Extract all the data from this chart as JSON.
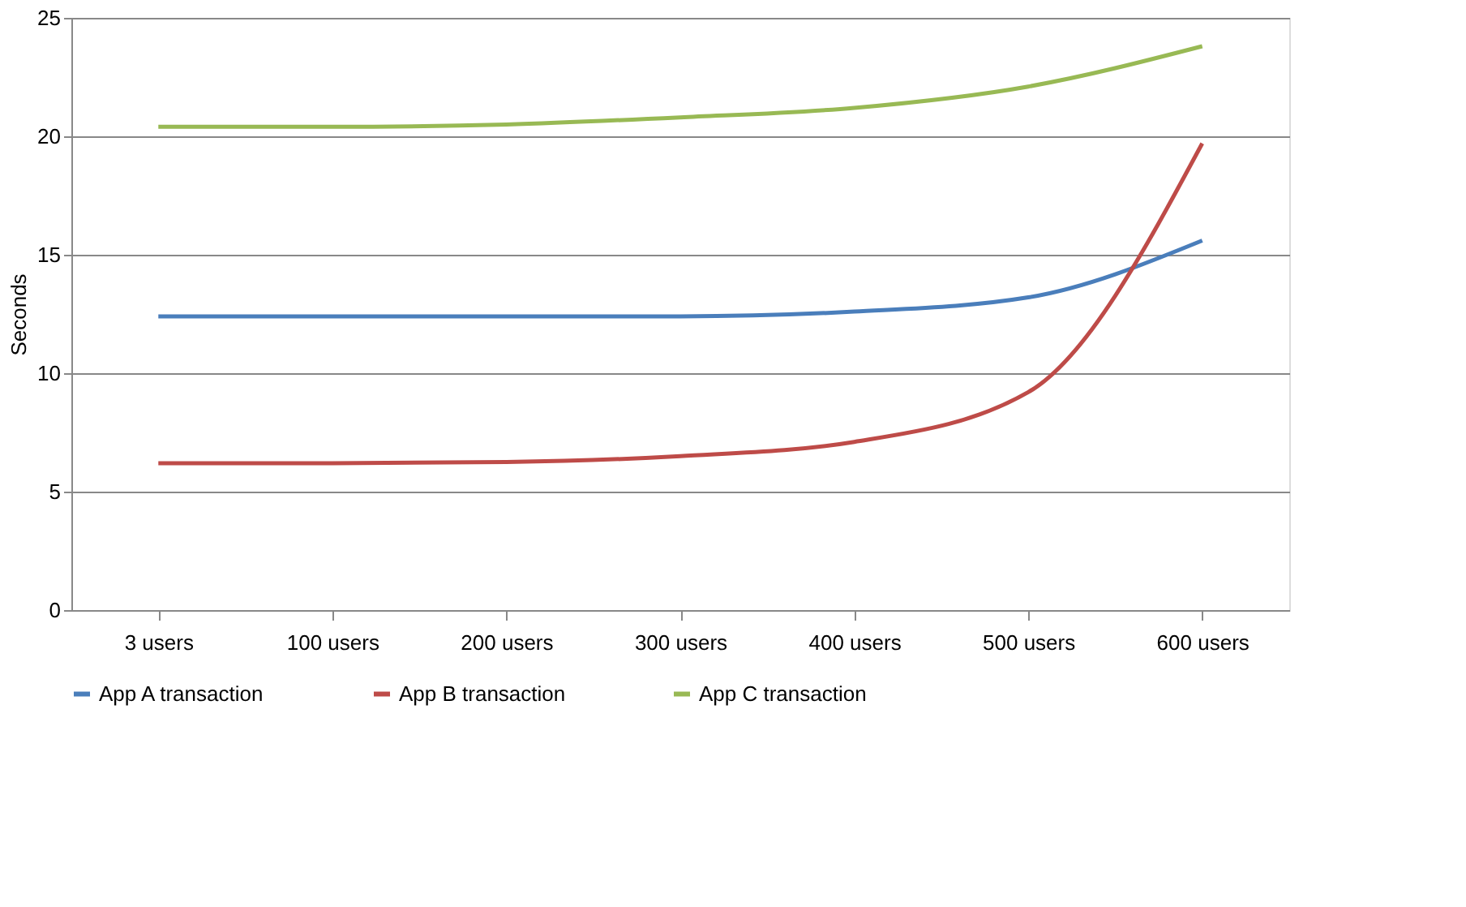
{
  "chart_data": {
    "type": "line",
    "ylabel": "Seconds",
    "categories": [
      "3 users",
      "100 users",
      "200 users",
      "300 users",
      "400 users",
      "500 users",
      "600 users"
    ],
    "series": [
      {
        "name": "App A transaction",
        "color": "#4a7ebb",
        "values": [
          12.4,
          12.4,
          12.4,
          12.4,
          12.6,
          13.2,
          15.6
        ]
      },
      {
        "name": "App B transaction",
        "color": "#be4b48",
        "values": [
          6.2,
          6.2,
          6.25,
          6.5,
          7.1,
          9.2,
          19.7
        ]
      },
      {
        "name": "App C transaction",
        "color": "#98b954",
        "values": [
          20.4,
          20.4,
          20.5,
          20.8,
          21.2,
          22.1,
          23.8
        ]
      }
    ],
    "ylim": [
      0,
      25
    ],
    "yticks": [
      0,
      5,
      10,
      15,
      20,
      25
    ],
    "grid": "y",
    "legend": "bottom",
    "marker": "none",
    "line_style": "solid"
  }
}
